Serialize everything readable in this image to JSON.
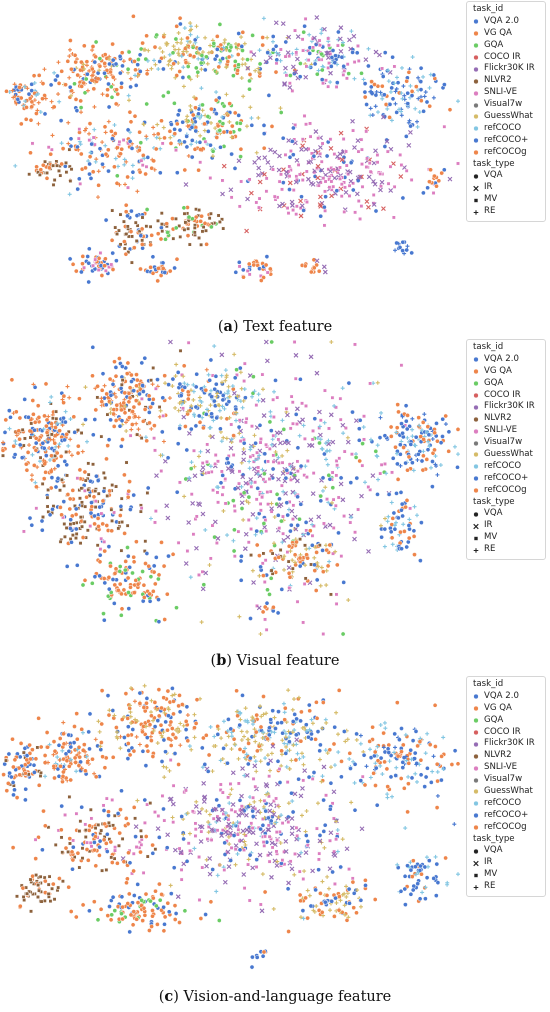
{
  "chart_data": [
    {
      "type": "scatter",
      "caption_letter": "a",
      "caption_text": "Text feature",
      "legend_hue_title": "task_id",
      "legend_style_title": "task_type",
      "series": [
        {
          "name": "VQA 2.0",
          "color": "#4878d0",
          "task_type": "VQA"
        },
        {
          "name": "VG QA",
          "color": "#ee854a",
          "task_type": "VQA"
        },
        {
          "name": "GQA",
          "color": "#6acc64",
          "task_type": "VQA"
        },
        {
          "name": "COCO IR",
          "color": "#d65f5f",
          "task_type": "IR"
        },
        {
          "name": "Flickr30K IR",
          "color": "#956cb4",
          "task_type": "IR"
        },
        {
          "name": "NLVR2",
          "color": "#8c613c",
          "task_type": "MV"
        },
        {
          "name": "SNLI-VE",
          "color": "#dc7ec0",
          "task_type": "MV"
        },
        {
          "name": "Visual7w",
          "color": "#797979",
          "task_type": "RE"
        },
        {
          "name": "GuessWhat",
          "color": "#d5bb67",
          "task_type": "RE"
        },
        {
          "name": "refCOCO",
          "color": "#82c6e2",
          "task_type": "RE"
        },
        {
          "name": "refCOCO+",
          "color": "#4878d0",
          "task_type": "RE"
        },
        {
          "name": "refCOCOg",
          "color": "#ee854a",
          "task_type": "RE"
        }
      ],
      "task_types": [
        {
          "name": "VQA",
          "marker": "circle"
        },
        {
          "name": "IR",
          "marker": "x"
        },
        {
          "name": "MV",
          "marker": "square"
        },
        {
          "name": "RE",
          "marker": "plus"
        }
      ],
      "legend_position": "right",
      "grid": false,
      "axes_visible": false
    },
    {
      "type": "scatter",
      "caption_letter": "b",
      "caption_text": "Visual feature",
      "legend_hue_title": "task_id",
      "legend_style_title": "task_type",
      "series": [
        {
          "name": "VQA 2.0",
          "color": "#4878d0",
          "task_type": "VQA"
        },
        {
          "name": "VG QA",
          "color": "#ee854a",
          "task_type": "VQA"
        },
        {
          "name": "GQA",
          "color": "#6acc64",
          "task_type": "VQA"
        },
        {
          "name": "COCO IR",
          "color": "#d65f5f",
          "task_type": "IR"
        },
        {
          "name": "Flickr30K IR",
          "color": "#956cb4",
          "task_type": "IR"
        },
        {
          "name": "NLVR2",
          "color": "#8c613c",
          "task_type": "MV"
        },
        {
          "name": "SNLI-VE",
          "color": "#dc7ec0",
          "task_type": "MV"
        },
        {
          "name": "Visual7w",
          "color": "#797979",
          "task_type": "RE"
        },
        {
          "name": "GuessWhat",
          "color": "#d5bb67",
          "task_type": "RE"
        },
        {
          "name": "refCOCO",
          "color": "#82c6e2",
          "task_type": "RE"
        },
        {
          "name": "refCOCO+",
          "color": "#4878d0",
          "task_type": "RE"
        },
        {
          "name": "refCOCOg",
          "color": "#ee854a",
          "task_type": "RE"
        }
      ],
      "task_types": [
        {
          "name": "VQA",
          "marker": "circle"
        },
        {
          "name": "IR",
          "marker": "x"
        },
        {
          "name": "MV",
          "marker": "square"
        },
        {
          "name": "RE",
          "marker": "plus"
        }
      ],
      "legend_position": "right",
      "grid": false,
      "axes_visible": false
    },
    {
      "type": "scatter",
      "caption_letter": "c",
      "caption_text": "Vision-and-language feature",
      "legend_hue_title": "task_id",
      "legend_style_title": "task_type",
      "series": [
        {
          "name": "VQA 2.0",
          "color": "#4878d0",
          "task_type": "VQA"
        },
        {
          "name": "VG QA",
          "color": "#ee854a",
          "task_type": "VQA"
        },
        {
          "name": "GQA",
          "color": "#6acc64",
          "task_type": "VQA"
        },
        {
          "name": "COCO IR",
          "color": "#d65f5f",
          "task_type": "IR"
        },
        {
          "name": "Flickr30K IR",
          "color": "#956cb4",
          "task_type": "IR"
        },
        {
          "name": "NLVR2",
          "color": "#8c613c",
          "task_type": "MV"
        },
        {
          "name": "SNLI-VE",
          "color": "#dc7ec0",
          "task_type": "MV"
        },
        {
          "name": "Visual7w",
          "color": "#797979",
          "task_type": "RE"
        },
        {
          "name": "GuessWhat",
          "color": "#d5bb67",
          "task_type": "RE"
        },
        {
          "name": "refCOCO",
          "color": "#82c6e2",
          "task_type": "RE"
        },
        {
          "name": "refCOCO+",
          "color": "#4878d0",
          "task_type": "RE"
        },
        {
          "name": "refCOCOg",
          "color": "#ee854a",
          "task_type": "RE"
        }
      ],
      "task_types": [
        {
          "name": "VQA",
          "marker": "circle"
        },
        {
          "name": "IR",
          "marker": "x"
        },
        {
          "name": "MV",
          "marker": "square"
        },
        {
          "name": "RE",
          "marker": "plus"
        }
      ],
      "legend_position": "right",
      "grid": false,
      "axes_visible": false
    }
  ]
}
